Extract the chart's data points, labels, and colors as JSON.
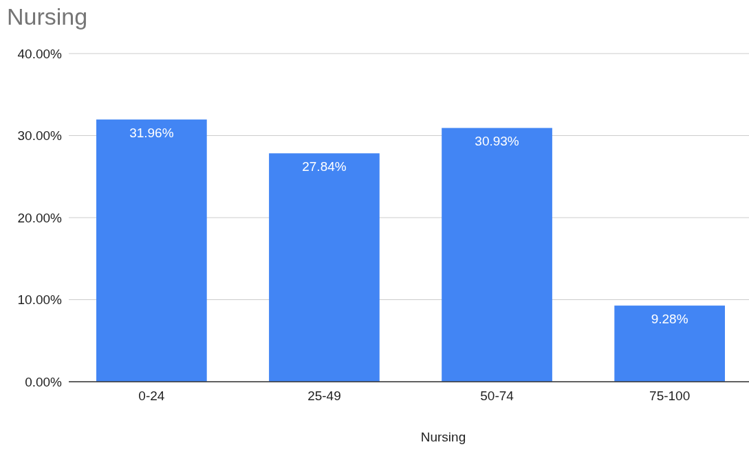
{
  "chart_data": {
    "type": "bar",
    "title": "Nursing",
    "xlabel": "Nursing",
    "categories": [
      "0-24",
      "25-49",
      "50-74",
      "75-100"
    ],
    "values": [
      31.96,
      27.84,
      30.93,
      9.28
    ],
    "value_labels": [
      "31.96%",
      "27.84%",
      "30.93%",
      "9.28%"
    ],
    "color": "#4285f4",
    "ylim": [
      0,
      40
    ],
    "yticks": [
      {
        "value": 0,
        "label": "0.00%"
      },
      {
        "value": 10,
        "label": "10.00%"
      },
      {
        "value": 20,
        "label": "20.00%"
      },
      {
        "value": 30,
        "label": "30.00%"
      },
      {
        "value": 40,
        "label": "40.00%"
      }
    ],
    "grid": "y"
  }
}
